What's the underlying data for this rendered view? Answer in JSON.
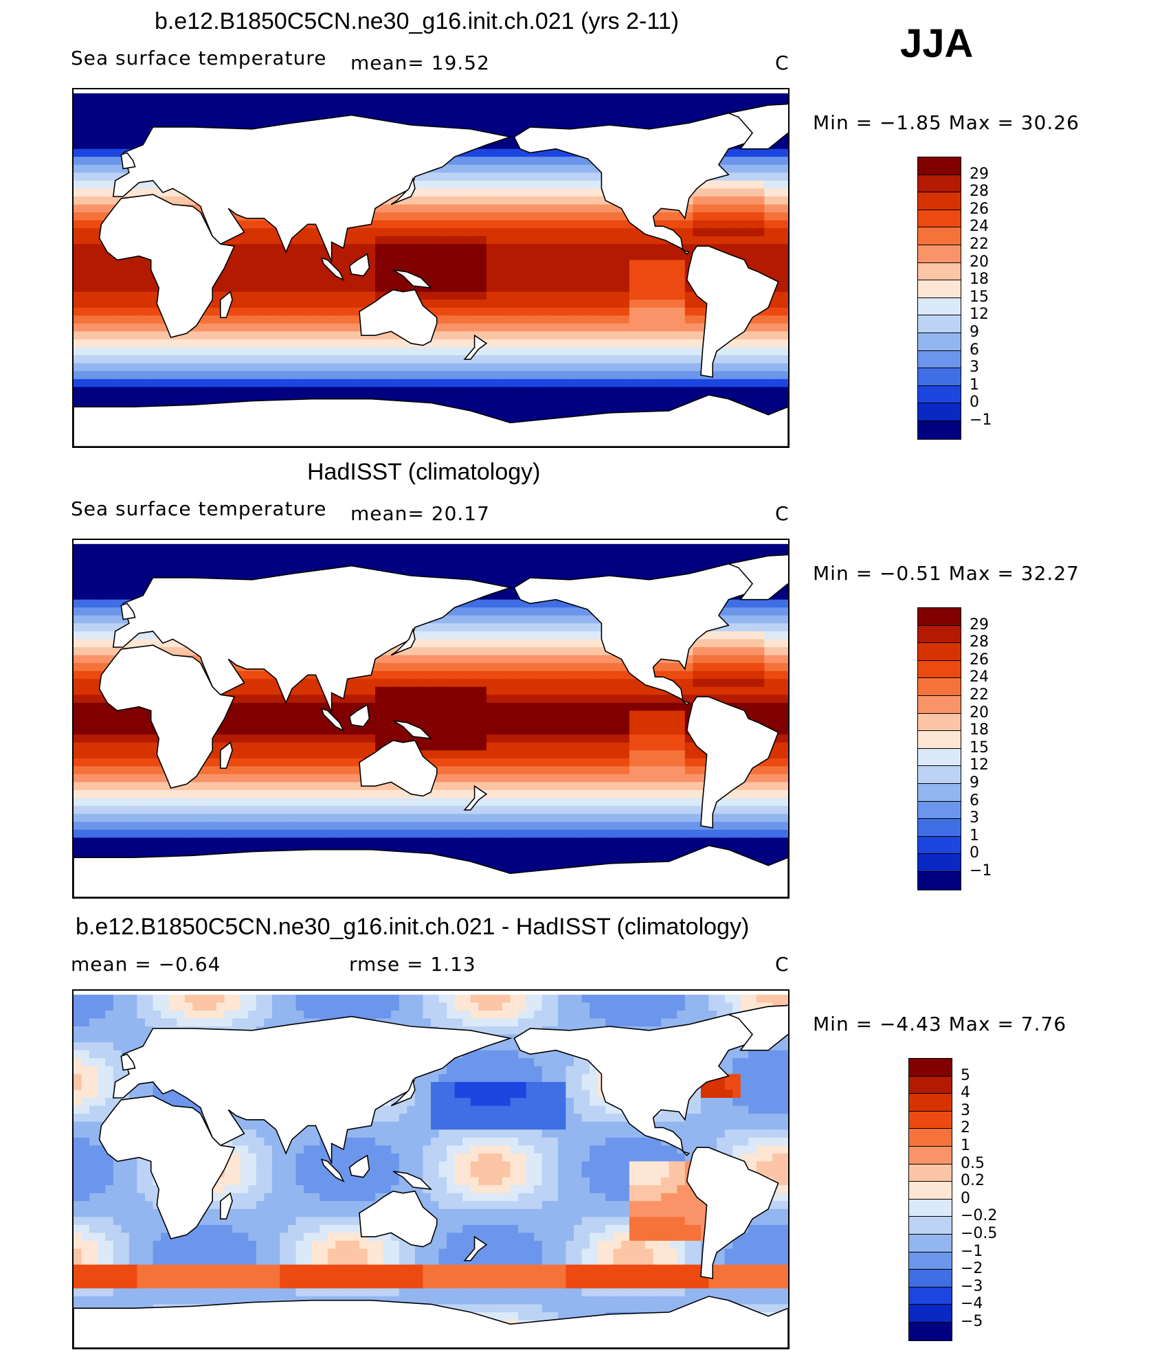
{
  "season": "JJA",
  "panels": [
    {
      "title": "b.e12.B1850C5CN.ne30_g16.init.ch.021 (yrs 2-11)",
      "left_label": "Sea surface temperature",
      "stat1": "mean=   19.52",
      "stat2": "",
      "units": "C",
      "minmax": "Min =   −1.85 Max =   30.26",
      "levels": [
        "29",
        "28",
        "26",
        "24",
        "22",
        "20",
        "18",
        "15",
        "12",
        "9",
        "6",
        "3",
        "1",
        "0",
        "−1"
      ],
      "colors": [
        "#800000",
        "#b31a00",
        "#d63300",
        "#ec4a10",
        "#f5733a",
        "#fa9468",
        "#fcc5a6",
        "#fde6d3",
        "#dbe9f8",
        "#bcd3f5",
        "#93b6f0",
        "#6c96eb",
        "#3f6ee5",
        "#1d45e0",
        "#0a28c4",
        "#000080"
      ]
    },
    {
      "title": "HadISST (climatology)",
      "left_label": "Sea surface temperature",
      "stat1": "mean=   20.17",
      "stat2": "",
      "units": "C",
      "minmax": "Min =   −0.51 Max =   32.27",
      "levels": [
        "29",
        "28",
        "26",
        "24",
        "22",
        "20",
        "18",
        "15",
        "12",
        "9",
        "6",
        "3",
        "1",
        "0",
        "−1"
      ],
      "colors": [
        "#800000",
        "#b31a00",
        "#d63300",
        "#ec4a10",
        "#f5733a",
        "#fa9468",
        "#fcc5a6",
        "#fde6d3",
        "#dbe9f8",
        "#bcd3f5",
        "#93b6f0",
        "#6c96eb",
        "#3f6ee5",
        "#1d45e0",
        "#0a28c4",
        "#000080"
      ]
    },
    {
      "title": "b.e12.B1850C5CN.ne30_g16.init.ch.021 - HadISST (climatology)",
      "left_label": "mean =   −0.64",
      "stat1": "rmse =    1.13",
      "stat2": "",
      "units": "C",
      "minmax": "Min =   −4.43 Max =    7.76",
      "levels": [
        "5",
        "4",
        "3",
        "2",
        "1",
        "0.5",
        "0.2",
        "0",
        "−0.2",
        "−0.5",
        "−1",
        "−2",
        "−3",
        "−4",
        "−5"
      ],
      "colors": [
        "#800000",
        "#b31a00",
        "#d63300",
        "#ec4a10",
        "#f5733a",
        "#fa9468",
        "#fcc5a6",
        "#fde6d3",
        "#dbe9f8",
        "#bcd3f5",
        "#93b6f0",
        "#6c96eb",
        "#3f6ee5",
        "#1d45e0",
        "#0a28c4",
        "#000080"
      ]
    }
  ]
}
